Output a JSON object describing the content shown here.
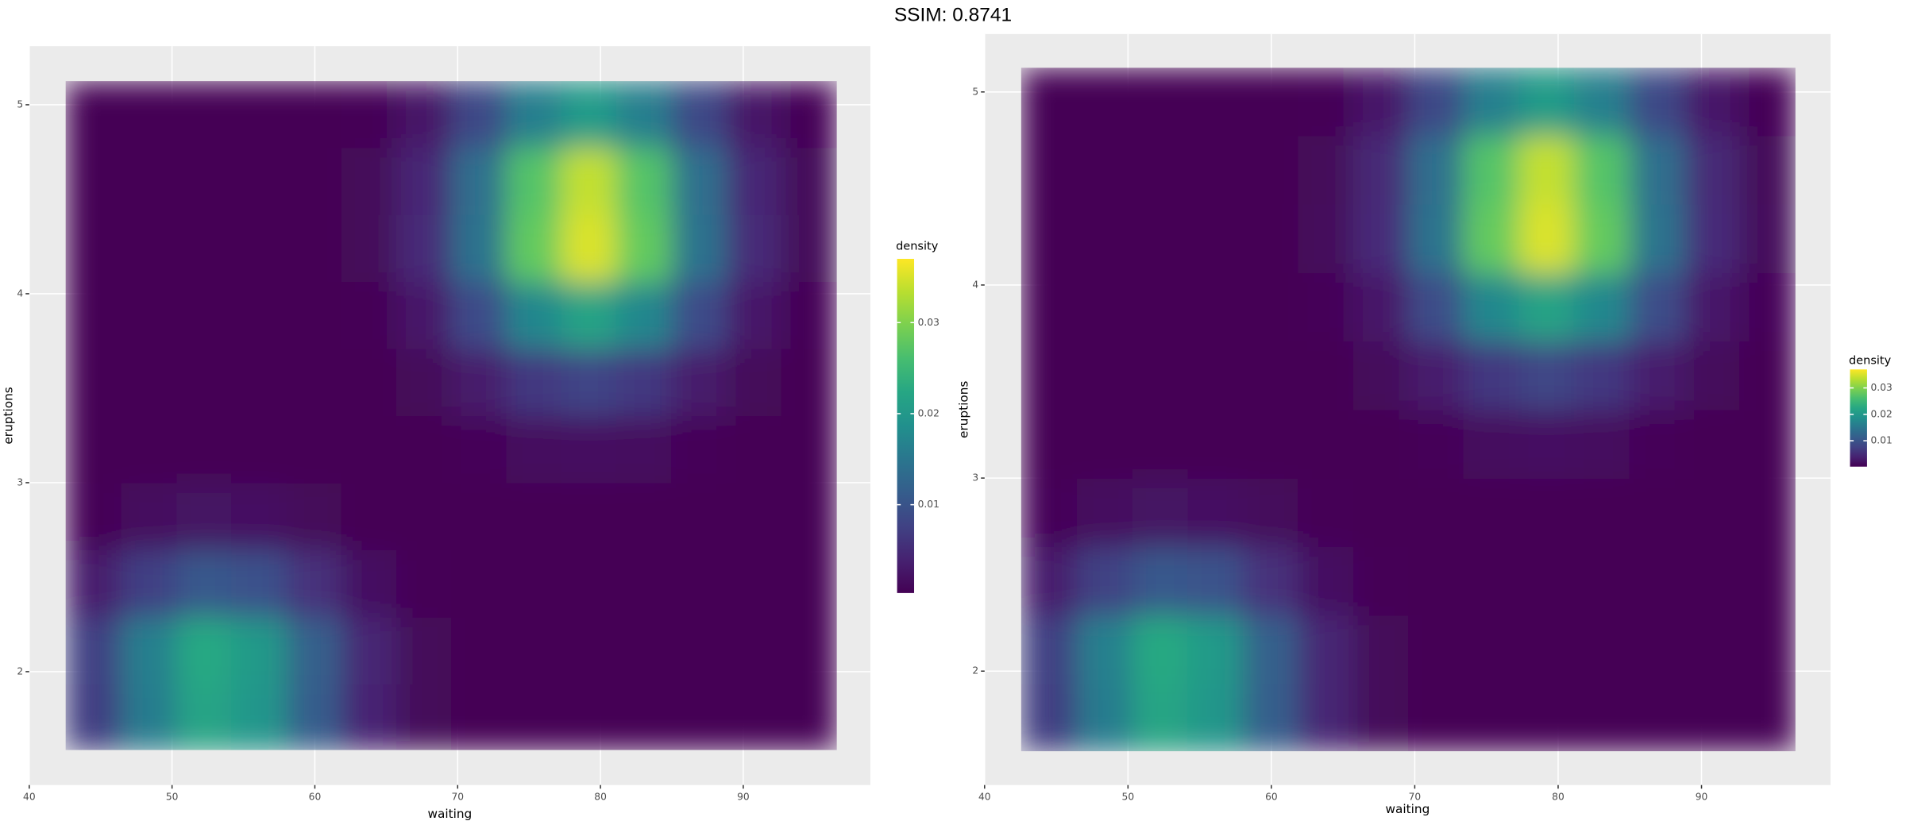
{
  "title": "SSIM: 0.8741",
  "chart_data": [
    {
      "type": "heatmap",
      "xlabel": "waiting",
      "ylabel": "eruptions",
      "legend_title": "density",
      "xlim": [
        40,
        98.9
      ],
      "ylim": [
        1.4,
        5.31
      ],
      "xticks": [
        40,
        50,
        60,
        70,
        80,
        90
      ],
      "yticks": [
        2,
        3,
        4,
        5
      ],
      "fill_lim": [
        0.0003,
        0.037
      ],
      "fill_ticks": [
        0.01,
        0.02,
        0.03
      ],
      "grid": true,
      "x": [
        44.5,
        48.4,
        52.2,
        56.1,
        59.9,
        63.8,
        67.6,
        71.5,
        75.3,
        79.2,
        83.0,
        86.9,
        90.7,
        94.6
      ],
      "y": [
        1.76,
        2.11,
        2.47,
        2.82,
        3.18,
        3.53,
        3.89,
        4.24,
        4.6,
        4.95
      ],
      "z": [
        [
          0.0071,
          0.0158,
          0.022,
          0.0196,
          0.0113,
          0.0042,
          0.001,
          0.0002,
          0,
          0,
          0,
          0,
          0,
          0
        ],
        [
          0.0074,
          0.0163,
          0.0228,
          0.0202,
          0.0117,
          0.0044,
          0.001,
          0.0002,
          0,
          0,
          0,
          0,
          0,
          0
        ],
        [
          0.0034,
          0.0076,
          0.0106,
          0.0095,
          0.0055,
          0.002,
          0.0005,
          0.0001,
          0,
          0,
          0,
          0,
          0,
          0
        ],
        [
          0.0007,
          0.0016,
          0.0022,
          0.002,
          0.0011,
          0.0004,
          0.0001,
          0.0001,
          0.0002,
          0.0003,
          0.0002,
          0.0001,
          0,
          0
        ],
        [
          0.0001,
          0.0002,
          0.0002,
          0.0002,
          0.0001,
          0.0001,
          0.0002,
          0.0008,
          0.0015,
          0.0019,
          0.0015,
          0.0008,
          0.0002,
          0.0001
        ],
        [
          0,
          0,
          0,
          0,
          0,
          0.0002,
          0.0011,
          0.0033,
          0.0065,
          0.0081,
          0.0065,
          0.0033,
          0.0011,
          0.0002
        ],
        [
          0,
          0,
          0,
          0,
          0.0001,
          0.0007,
          0.0029,
          0.0089,
          0.0174,
          0.0218,
          0.0174,
          0.0089,
          0.0029,
          0.0007
        ],
        [
          0,
          0,
          0,
          0,
          0.0001,
          0.0011,
          0.0048,
          0.0144,
          0.0282,
          0.0352,
          0.0282,
          0.0144,
          0.0048,
          0.0011
        ],
        [
          0,
          0,
          0,
          0,
          0.0001,
          0.001,
          0.0046,
          0.0139,
          0.0272,
          0.034,
          0.0272,
          0.0139,
          0.0046,
          0.001
        ],
        [
          0,
          0,
          0,
          0,
          0.0001,
          0.0006,
          0.0028,
          0.0084,
          0.0163,
          0.0204,
          0.0163,
          0.0084,
          0.0028,
          0.0006
        ]
      ]
    },
    {
      "type": "heatmap",
      "xlabel": "waiting",
      "ylabel": "eruptions",
      "legend_title": "density",
      "xlim": [
        40,
        99
      ],
      "ylim": [
        1.41,
        5.3
      ],
      "xticks": [
        40,
        50,
        60,
        70,
        80,
        90
      ],
      "yticks": [
        2,
        3,
        4,
        5
      ],
      "fill_lim": [
        0.0002,
        0.037
      ],
      "fill_ticks": [
        0.01,
        0.02,
        0.03
      ],
      "grid": true,
      "x": [
        44.5,
        48.4,
        52.2,
        56.1,
        59.9,
        63.8,
        67.6,
        71.5,
        75.3,
        79.2,
        83.0,
        86.9,
        90.7,
        94.6
      ],
      "y": [
        1.76,
        2.11,
        2.47,
        2.82,
        3.18,
        3.53,
        3.89,
        4.24,
        4.6,
        4.95
      ],
      "z": [
        [
          0.0071,
          0.0158,
          0.022,
          0.0196,
          0.0113,
          0.0042,
          0.001,
          0.0002,
          0,
          0,
          0,
          0,
          0,
          0
        ],
        [
          0.0074,
          0.0163,
          0.0228,
          0.0202,
          0.0117,
          0.0044,
          0.001,
          0.0002,
          0,
          0,
          0,
          0,
          0,
          0
        ],
        [
          0.0034,
          0.0076,
          0.0106,
          0.0095,
          0.0055,
          0.002,
          0.0005,
          0.0001,
          0,
          0,
          0,
          0,
          0,
          0
        ],
        [
          0.0007,
          0.0016,
          0.0022,
          0.002,
          0.0011,
          0.0004,
          0.0001,
          0.0001,
          0.0002,
          0.0003,
          0.0002,
          0.0001,
          0,
          0
        ],
        [
          0.0001,
          0.0002,
          0.0002,
          0.0002,
          0.0001,
          0.0001,
          0.0002,
          0.0008,
          0.0015,
          0.0019,
          0.0015,
          0.0008,
          0.0002,
          0.0001
        ],
        [
          0,
          0,
          0,
          0,
          0,
          0.0002,
          0.0011,
          0.0033,
          0.0065,
          0.0081,
          0.0065,
          0.0033,
          0.0011,
          0.0002
        ],
        [
          0,
          0,
          0,
          0,
          0.0001,
          0.0007,
          0.0029,
          0.0089,
          0.0174,
          0.0218,
          0.0174,
          0.0089,
          0.0029,
          0.0007
        ],
        [
          0,
          0,
          0,
          0,
          0.0001,
          0.0011,
          0.0048,
          0.0144,
          0.0282,
          0.0352,
          0.0282,
          0.0144,
          0.0048,
          0.0011
        ],
        [
          0,
          0,
          0,
          0,
          0.0001,
          0.001,
          0.0046,
          0.0139,
          0.0272,
          0.034,
          0.0272,
          0.0139,
          0.0046,
          0.001
        ],
        [
          0,
          0,
          0,
          0,
          0.0001,
          0.0006,
          0.0028,
          0.0084,
          0.0163,
          0.0204,
          0.0163,
          0.0084,
          0.0028,
          0.0006
        ]
      ]
    }
  ]
}
